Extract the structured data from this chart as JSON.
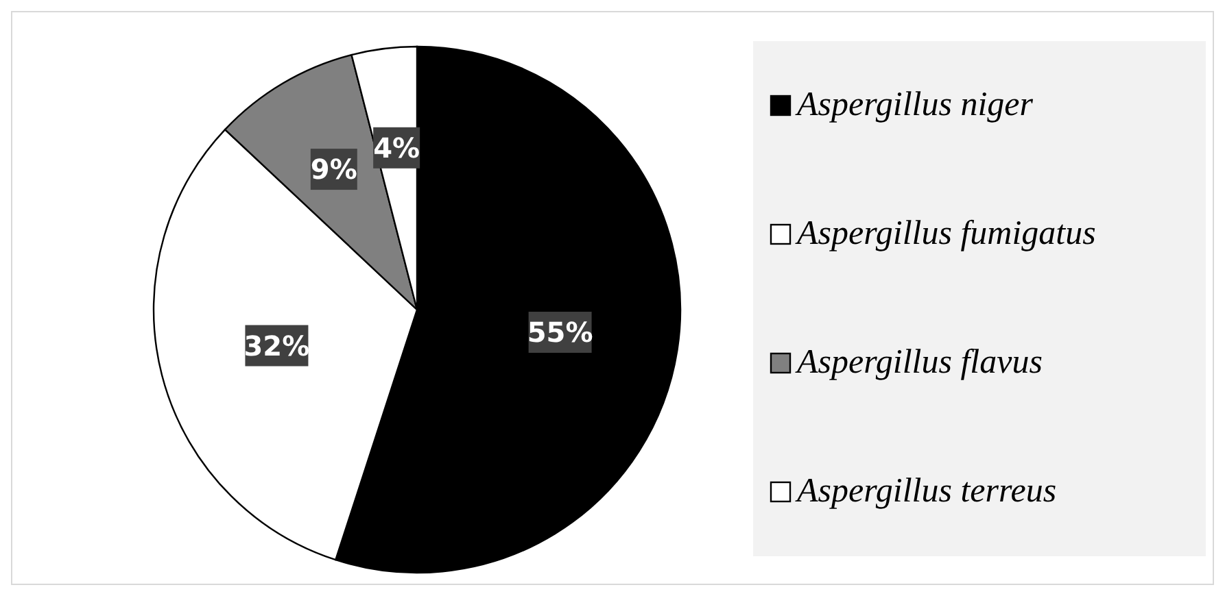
{
  "chart_data": {
    "type": "pie",
    "categories": [
      "Aspergillus niger",
      "Aspergillus fumigatus",
      "Aspergillus flavus",
      "Aspergillus terreus"
    ],
    "values": [
      55,
      32,
      9,
      4
    ],
    "value_labels": [
      "55%",
      "32%",
      "9%",
      "4%"
    ],
    "colors": [
      "#000000",
      "#ffffff",
      "#808080",
      "#ffffff"
    ],
    "legend": "right"
  }
}
